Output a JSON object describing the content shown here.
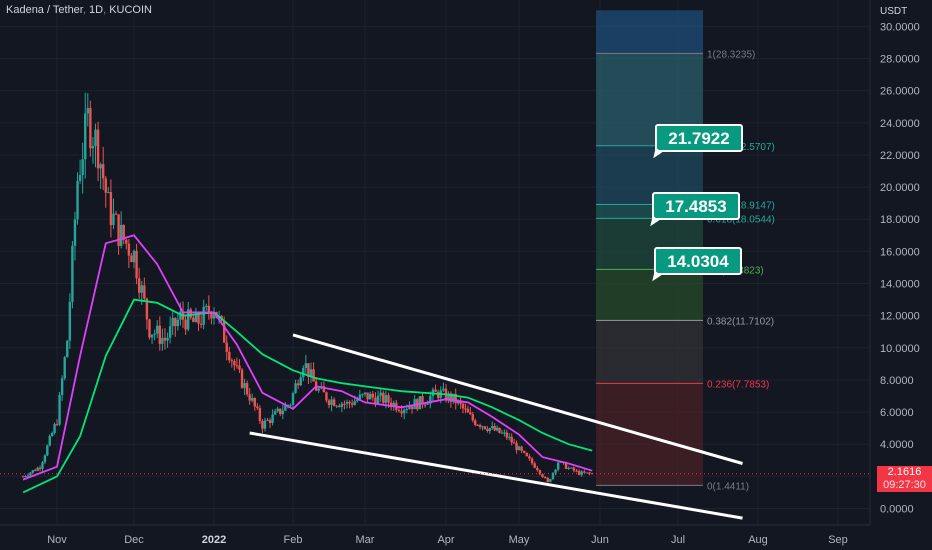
{
  "header": {
    "symbol": "Kadena / Tether",
    "interval": "1D",
    "exchange": "KUCOIN"
  },
  "price_axis": {
    "currency": "USDT",
    "ticks": [
      "30.0000",
      "28.0000",
      "26.0000",
      "24.0000",
      "22.0000",
      "20.0000",
      "18.0000",
      "16.0000",
      "14.0000",
      "12.0000",
      "10.0000",
      "8.0000",
      "6.0000",
      "4.0000",
      "2.0000",
      "0.0000"
    ]
  },
  "time_axis": {
    "ticks": [
      "Nov",
      "Dec",
      "2022",
      "Feb",
      "Mar",
      "Apr",
      "May",
      "Jun",
      "Jul",
      "Aug",
      "Sep"
    ]
  },
  "last_price": {
    "value": "2.1616",
    "countdown": "09:27:30"
  },
  "fib_levels": [
    {
      "label": "1(28.3235)",
      "price": 28.3235,
      "color": "#787b86"
    },
    {
      "label": "1.618(22.5707)",
      "price": 22.5707,
      "color": "#26a69a"
    },
    {
      "label": "1.272(18.9147)",
      "price": 18.9147,
      "color": "#26a69a"
    },
    {
      "label": "0.618(18.0544)",
      "price": 18.0544,
      "color": "#26a69a"
    },
    {
      "label": "0.5(14.8823)",
      "price": 14.8823,
      "color": "#4caf50"
    },
    {
      "label": "0.382(11.7102)",
      "price": 11.7102,
      "color": "#9598a1"
    },
    {
      "label": "0.236(7.7853)",
      "price": 7.7853,
      "color": "#f23645"
    },
    {
      "label": "0(1.4411)",
      "price": 1.4411,
      "color": "#787b86"
    }
  ],
  "targets": [
    "21.7922",
    "17.4853",
    "14.0304"
  ],
  "colors": {
    "up": "#26a69a",
    "down": "#ef5350",
    "ema_fast": "#e040fb",
    "ema_slow": "#00e676",
    "trend": "#ffffff"
  },
  "chart_data": {
    "type": "candlestick",
    "ylim": [
      -1.0,
      31.0
    ],
    "x_ticks": [
      "Nov",
      "Dec",
      "2022",
      "Feb",
      "Mar",
      "Apr",
      "May",
      "Jun",
      "Jul",
      "Aug",
      "Sep"
    ],
    "close_series": {
      "x": [
        "2021-10-18",
        "2021-10-25",
        "2021-11-01",
        "2021-11-05",
        "2021-11-09",
        "2021-11-13",
        "2021-11-17",
        "2021-11-21",
        "2021-11-25",
        "2021-12-01",
        "2021-12-07",
        "2021-12-13",
        "2021-12-19",
        "2021-12-25",
        "2022-01-01",
        "2022-01-06",
        "2022-01-10",
        "2022-01-15",
        "2022-01-20",
        "2022-01-25",
        "2022-01-31",
        "2022-02-05",
        "2022-02-10",
        "2022-02-15",
        "2022-02-22",
        "2022-03-01",
        "2022-03-08",
        "2022-03-15",
        "2022-03-22",
        "2022-03-29",
        "2022-04-05",
        "2022-04-12",
        "2022-04-19",
        "2022-04-26",
        "2022-05-03",
        "2022-05-08",
        "2022-05-12",
        "2022-05-16",
        "2022-05-20",
        "2022-05-24",
        "2022-05-29"
      ],
      "y": [
        2.0,
        2.6,
        5.5,
        10.5,
        20.5,
        24.2,
        22.5,
        18.8,
        17.2,
        15.8,
        11.2,
        10.5,
        11.9,
        11.5,
        12.6,
        10.2,
        8.5,
        7.0,
        5.2,
        5.8,
        6.6,
        9.2,
        7.5,
        6.8,
        6.5,
        7.0,
        6.8,
        6.3,
        6.6,
        7.2,
        6.7,
        5.5,
        5.0,
        4.5,
        3.3,
        2.5,
        1.6,
        2.9,
        2.5,
        2.2,
        2.16
      ]
    },
    "ema_fast": {
      "x": [
        "2021-10-18",
        "2021-11-01",
        "2021-11-10",
        "2021-11-20",
        "2021-12-01",
        "2021-12-10",
        "2021-12-20",
        "2022-01-01",
        "2022-01-10",
        "2022-01-20",
        "2022-02-01",
        "2022-02-10",
        "2022-02-20",
        "2022-03-01",
        "2022-03-15",
        "2022-04-01",
        "2022-04-10",
        "2022-04-20",
        "2022-05-01",
        "2022-05-10",
        "2022-05-20",
        "2022-05-29"
      ],
      "y": [
        1.8,
        2.6,
        9.5,
        16.5,
        17.0,
        15.2,
        12.2,
        12.2,
        10.2,
        7.2,
        6.2,
        7.6,
        7.3,
        6.6,
        6.3,
        6.8,
        6.6,
        5.7,
        4.6,
        3.2,
        2.8,
        2.35
      ]
    },
    "ema_slow": {
      "x": [
        "2021-10-18",
        "2021-11-01",
        "2021-11-10",
        "2021-11-20",
        "2021-12-01",
        "2021-12-10",
        "2021-12-20",
        "2022-01-01",
        "2022-01-10",
        "2022-01-20",
        "2022-02-01",
        "2022-02-10",
        "2022-02-20",
        "2022-03-01",
        "2022-03-15",
        "2022-04-01",
        "2022-04-10",
        "2022-04-20",
        "2022-05-01",
        "2022-05-10",
        "2022-05-20",
        "2022-05-29"
      ],
      "y": [
        1.0,
        2.0,
        4.5,
        9.5,
        13.0,
        12.8,
        12.0,
        12.2,
        11.0,
        9.6,
        8.6,
        8.1,
        7.8,
        7.6,
        7.3,
        7.1,
        6.9,
        6.3,
        5.5,
        4.7,
        4.0,
        3.6
      ]
    },
    "trendlines": [
      {
        "x": [
          "2022-02-01",
          "2022-07-26"
        ],
        "y": [
          10.8,
          2.8
        ]
      },
      {
        "x": [
          "2022-01-15",
          "2022-07-26"
        ],
        "y": [
          4.7,
          -0.6
        ]
      }
    ]
  }
}
